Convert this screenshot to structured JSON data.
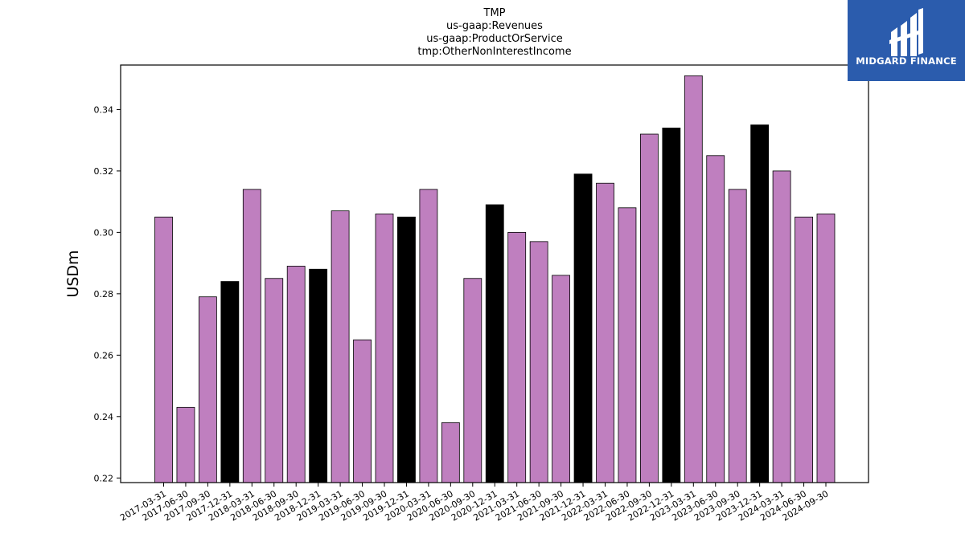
{
  "chart_data": {
    "type": "bar",
    "title_lines": [
      "TMP",
      "us-gaap:Revenues",
      "us-gaap:ProductOrService",
      "tmp:OtherNonInterestIncome"
    ],
    "xlabel": "",
    "ylabel": "USDm",
    "ylim": [
      0.2185,
      0.3545
    ],
    "yticks": [
      0.22,
      0.24,
      0.26,
      0.28,
      0.3,
      0.32,
      0.34
    ],
    "ytick_labels": [
      "0.22",
      "0.24",
      "0.26",
      "0.28",
      "0.30",
      "0.32",
      "0.34"
    ],
    "grid": false,
    "colors": {
      "regular": "#bf7fbf",
      "year_end": "#000000",
      "edge": "#000000"
    },
    "categories": [
      "2017-03-31",
      "2017-06-30",
      "2017-09-30",
      "2017-12-31",
      "2018-03-31",
      "2018-06-30",
      "2018-09-30",
      "2018-12-31",
      "2019-03-31",
      "2019-06-30",
      "2019-09-30",
      "2019-12-31",
      "2020-03-31",
      "2020-06-30",
      "2020-09-30",
      "2020-12-31",
      "2021-03-31",
      "2021-06-30",
      "2021-09-30",
      "2021-12-31",
      "2022-03-31",
      "2022-06-30",
      "2022-09-30",
      "2022-12-31",
      "2023-03-31",
      "2023-06-30",
      "2023-09-30",
      "2023-12-31",
      "2024-03-31",
      "2024-06-30",
      "2024-09-30"
    ],
    "values": [
      0.305,
      0.243,
      0.279,
      0.284,
      0.314,
      0.285,
      0.289,
      0.288,
      0.307,
      0.265,
      0.306,
      0.305,
      0.314,
      0.238,
      0.285,
      0.309,
      0.3,
      0.297,
      0.286,
      0.319,
      0.316,
      0.308,
      0.332,
      0.334,
      0.351,
      0.325,
      0.314,
      0.335,
      0.32,
      0.305,
      0.306
    ],
    "highlight": [
      false,
      false,
      false,
      true,
      false,
      false,
      false,
      true,
      false,
      false,
      false,
      true,
      false,
      false,
      false,
      true,
      false,
      false,
      false,
      true,
      false,
      false,
      false,
      true,
      false,
      false,
      false,
      true,
      false,
      false,
      false
    ]
  },
  "logo": {
    "text": "MIDGARD FINANCE",
    "background": "#2b5cad"
  }
}
